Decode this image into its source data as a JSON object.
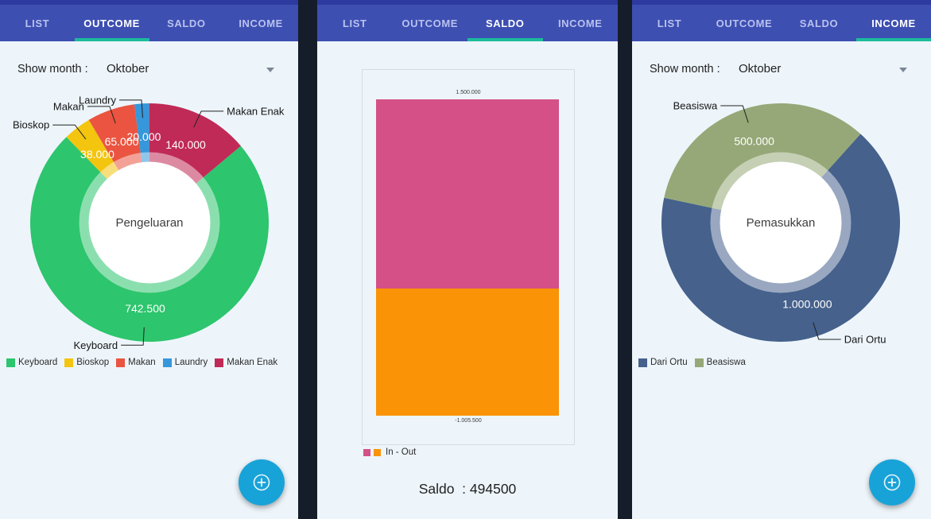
{
  "tabs": [
    "LIST",
    "OUTCOME",
    "SALDO",
    "INCOME"
  ],
  "colors": {
    "accent_teal": "#1cbc9c",
    "appbar": "#3e4fb2",
    "statusbar": "#2d3aa0",
    "screen_background": "#edf5fb",
    "fab": "#18a3d8",
    "text_dark": "#212121"
  },
  "screens": {
    "outcome": {
      "active_tab": "OUTCOME",
      "show_month": {
        "label": "Show month :",
        "value": "Oktober"
      },
      "fab_icon": "circled-plus"
    },
    "saldo": {
      "active_tab": "SALDO"
    },
    "income": {
      "active_tab": "INCOME",
      "show_month": {
        "label": "Show month :",
        "value": "Oktober"
      },
      "fab_icon": "circled-plus"
    }
  },
  "chart_data": [
    {
      "id": "outcome_donut",
      "type": "pie",
      "title": "Pengeluaran",
      "center_label": "Pengeluaran",
      "slices": [
        {
          "label": "Keyboard",
          "value": 742500,
          "display": "742.500",
          "color": "#2dc56d"
        },
        {
          "label": "Bioskop",
          "value": 38000,
          "display": "38.000",
          "color": "#f3c50f"
        },
        {
          "label": "Makan",
          "value": 65000,
          "display": "65.000",
          "color": "#ea5440"
        },
        {
          "label": "Laundry",
          "value": 20000,
          "display": "20.000",
          "color": "#3697da"
        },
        {
          "label": "Makan Enak",
          "value": 140000,
          "display": "140.000",
          "color": "#c02a57"
        }
      ],
      "legend_position": "bottom-left",
      "layout": {
        "start_angle_deg": 50,
        "hole_ratio": 0.51,
        "transparent_ring_ratio": 0.59
      }
    },
    {
      "id": "saldo_bar",
      "type": "bar",
      "stacked": true,
      "categories": [
        "In - Out"
      ],
      "series": [
        {
          "name": "In",
          "value": 1500000,
          "display": "1.500.000",
          "color": "#d45087"
        },
        {
          "name": "Out",
          "value": -1005500,
          "display": "-1.005.500",
          "color": "#fa9305"
        }
      ],
      "legend_label": "In - Out",
      "legend_position": "bottom-left",
      "ylim": [
        -1005500,
        1500000
      ],
      "grid": false,
      "footer": "Saldo  : 494500"
    },
    {
      "id": "income_donut",
      "type": "pie",
      "title": "Pemasukkan",
      "center_label": "Pemasukkan",
      "slices": [
        {
          "label": "Dari Ortu",
          "value": 1000000,
          "display": "1.000.000",
          "color": "#45618c"
        },
        {
          "label": "Beasiswa",
          "value": 500000,
          "display": "500.000",
          "color": "#96a877"
        }
      ],
      "legend_position": "bottom-left",
      "layout": {
        "start_angle_deg": 42,
        "hole_ratio": 0.51,
        "transparent_ring_ratio": 0.59
      }
    }
  ]
}
